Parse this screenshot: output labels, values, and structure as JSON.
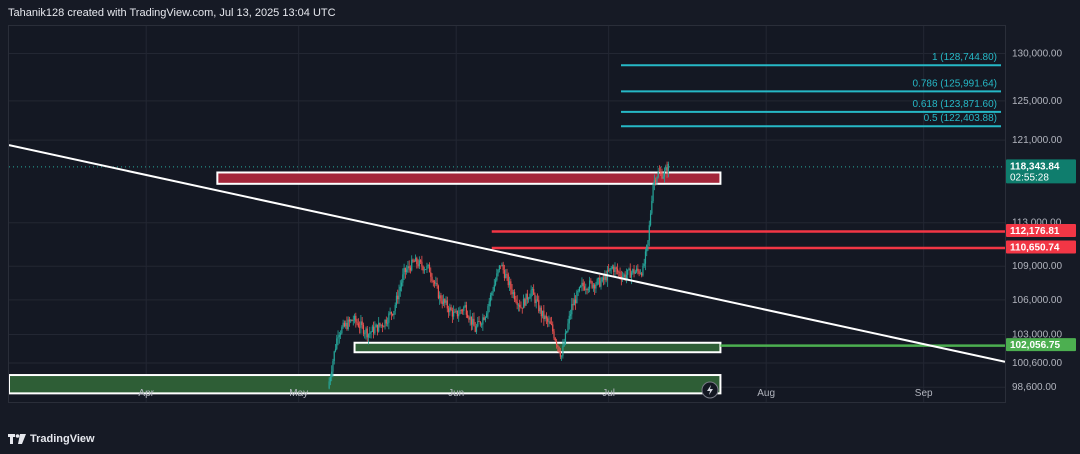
{
  "header": {
    "text": "Tahanik128 created with TradingView.com, Jul 13, 2025 13:04 UTC"
  },
  "footer": {
    "brand": "TradingView"
  },
  "colors": {
    "background": "#161a25",
    "grid": "#232733",
    "up_candle": "#26a69a",
    "down_candle": "#ef5350",
    "fib": "#26b8c6",
    "resistance": "#f23645",
    "support": "#4caf50",
    "trendline": "#ffffff",
    "zone_red": "#a3263a",
    "zone_green": "#2e5e36"
  },
  "chart_data": {
    "type": "candlestick",
    "x_axis": {
      "type": "date",
      "range": [
        "2025-03-05",
        "2025-09-17"
      ],
      "tick_labels": [
        "Apr",
        "May",
        "Jun",
        "Jul",
        "Aug",
        "Sep"
      ],
      "ticks": [
        "2025-04-01",
        "2025-05-01",
        "2025-06-01",
        "2025-07-01",
        "2025-08-01",
        "2025-09-01"
      ]
    },
    "y_axis": {
      "scale": "log",
      "range": [
        97400,
        133000
      ],
      "tick_labels": [
        "130,000.00",
        "125,000.00",
        "121,000.00",
        "113,000.00",
        "109,000.00",
        "106,000.00",
        "103,000.00",
        "100,600.00",
        "98,600.00"
      ],
      "ticks": [
        130000,
        125000,
        121000,
        113000,
        109000,
        106000,
        103000,
        100600,
        98600
      ]
    },
    "grid": true,
    "current_price": {
      "label": "118,343.84",
      "value": 118343.84,
      "countdown": "02:55:28"
    },
    "fibonacci": [
      {
        "label": "1 (128,744.80)",
        "value": 128744.8
      },
      {
        "label": "0.786 (125,991.64)",
        "value": 125991.64
      },
      {
        "label": "0.618 (123,871.60)",
        "value": 123871.6
      },
      {
        "label": "0.5 (122,403.88)",
        "value": 122403.88
      }
    ],
    "horizontal_levels": [
      {
        "label": "112,176.81",
        "value": 112176.81,
        "kind": "resistance",
        "from": "2025-06-08"
      },
      {
        "label": "110,650.74",
        "value": 110650.74,
        "kind": "resistance",
        "from": "2025-06-08"
      },
      {
        "label": "102,056.75",
        "value": 102056.75,
        "kind": "support",
        "from": "2025-07-23"
      }
    ],
    "zones": [
      {
        "kind": "red",
        "from": "2025-04-15",
        "to": "2025-07-23",
        "top": 117800,
        "bottom": 116700
      },
      {
        "kind": "green",
        "from": "2025-05-12",
        "to": "2025-07-23",
        "top": 102300,
        "bottom": 101500
      },
      {
        "kind": "green",
        "from": "2025-03-05",
        "to": "2025-07-23",
        "top": 99600,
        "bottom": 98100
      }
    ],
    "trendline": {
      "start": {
        "x": "2025-03-05",
        "y": 120500
      },
      "end": {
        "x": "2025-09-17",
        "y": 100700
      }
    },
    "candles_anchor": [
      [
        "2025-05-07",
        98500
      ],
      [
        "2025-05-09",
        103200
      ],
      [
        "2025-05-12",
        104300
      ],
      [
        "2025-05-15",
        103100
      ],
      [
        "2025-05-18",
        104000
      ],
      [
        "2025-05-20",
        105200
      ],
      [
        "2025-05-22",
        108400
      ],
      [
        "2025-05-24",
        109400
      ],
      [
        "2025-05-27",
        108700
      ],
      [
        "2025-05-29",
        106200
      ],
      [
        "2025-06-01",
        104600
      ],
      [
        "2025-06-03",
        105400
      ],
      [
        "2025-06-05",
        103400
      ],
      [
        "2025-06-07",
        104800
      ],
      [
        "2025-06-10",
        109200
      ],
      [
        "2025-06-12",
        107000
      ],
      [
        "2025-06-14",
        105400
      ],
      [
        "2025-06-16",
        106800
      ],
      [
        "2025-06-18",
        104800
      ],
      [
        "2025-06-20",
        103600
      ],
      [
        "2025-06-22",
        101200
      ],
      [
        "2025-06-24",
        105400
      ],
      [
        "2025-06-26",
        107200
      ],
      [
        "2025-06-28",
        107400
      ],
      [
        "2025-06-30",
        107600
      ],
      [
        "2025-07-02",
        108900
      ],
      [
        "2025-07-04",
        108100
      ],
      [
        "2025-07-06",
        108500
      ],
      [
        "2025-07-08",
        108600
      ],
      [
        "2025-07-09",
        111200
      ],
      [
        "2025-07-10",
        116800
      ],
      [
        "2025-07-11",
        117800
      ],
      [
        "2025-07-12",
        117600
      ],
      [
        "2025-07-13",
        118343
      ]
    ]
  }
}
